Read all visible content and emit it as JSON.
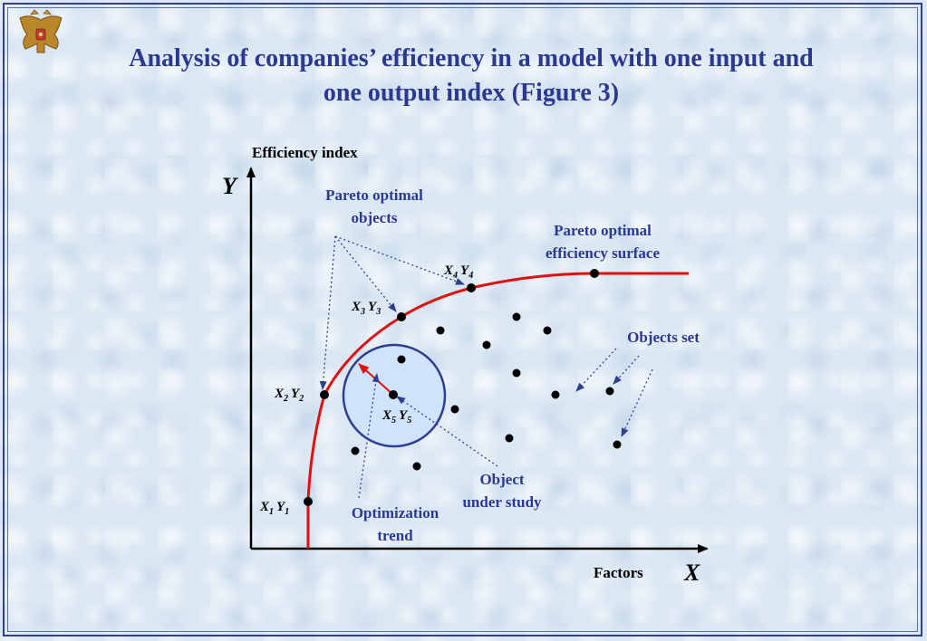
{
  "title": {
    "line1": "Analysis of companies’ efficiency in a model with one input and",
    "line2": "one output index (Figure 3)"
  },
  "emblem": {
    "name": "double-headed-eagle-emblem"
  },
  "axes": {
    "y_caption": "Efficiency index",
    "y_letter": "Y",
    "x_caption": "Factors",
    "x_letter": "X"
  },
  "callouts": {
    "pareto_objects_line1": "Pareto optimal",
    "pareto_objects_line2": "objects",
    "pareto_surface_line1": "Pareto optimal",
    "pareto_surface_line2": "efficiency surface",
    "objects_set": "Objects set",
    "object_study_line1": "Object",
    "object_study_line2": "under study",
    "optimization_line1": "Optimization",
    "optimization_line2": "trend"
  },
  "points": {
    "p1": {
      "x": "X",
      "xsub": "1",
      "y": "Y",
      "ysub": "1"
    },
    "p2": {
      "x": "X",
      "xsub": "2",
      "y": "Y",
      "ysub": "2"
    },
    "p3": {
      "x": "X",
      "xsub": "3",
      "y": "Y",
      "ysub": "3"
    },
    "p4": {
      "x": "X",
      "xsub": "4",
      "y": "Y",
      "ysub": "4"
    },
    "p5": {
      "x": "X",
      "xsub": "5",
      "y": "Y",
      "ysub": "5"
    }
  },
  "colors": {
    "title": "#2b3990",
    "callout_text": "#2b3990",
    "frontier": "#e01010",
    "circle_fill": "#cfe3fb",
    "circle_stroke": "#2e3f8f",
    "dots": "#000000"
  }
}
